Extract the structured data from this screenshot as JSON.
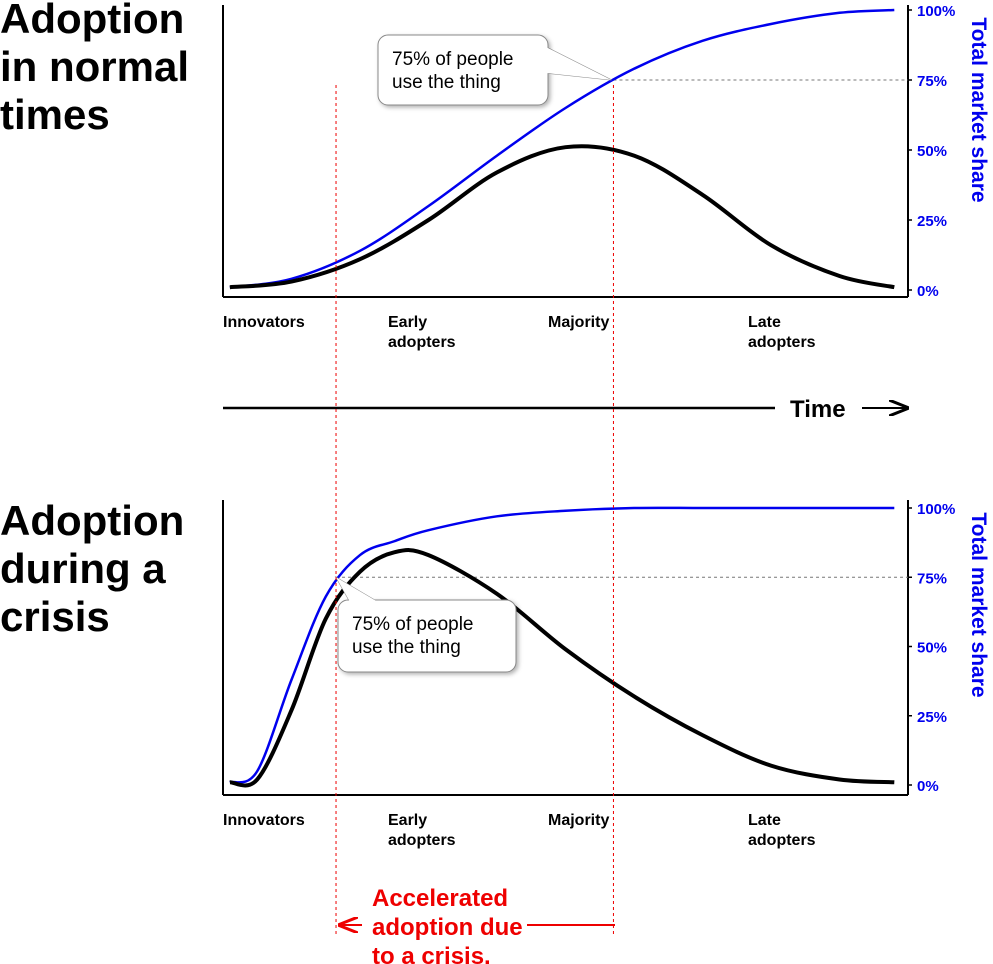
{
  "chart_data": [
    {
      "type": "line",
      "title": "Adoption in normal times",
      "y_label": "Total market share",
      "x": [
        1,
        10,
        20,
        30,
        40,
        50,
        60,
        70,
        80,
        90,
        98
      ],
      "xlim": [
        0,
        100
      ],
      "series": [
        {
          "color": "#0000ee",
          "values": [
            1,
            4,
            14,
            30,
            48,
            65,
            79,
            89,
            95,
            99,
            100
          ]
        },
        {
          "color": "#000000",
          "values": [
            1,
            3,
            11,
            25,
            42,
            51,
            48,
            34,
            16,
            5,
            1
          ]
        }
      ],
      "ylim": [
        0,
        100
      ],
      "yticks": [
        {
          "value": 0,
          "label": "0%"
        },
        {
          "value": 25,
          "label": "25%"
        },
        {
          "value": 50,
          "label": "50%"
        },
        {
          "value": 75,
          "label": "75%"
        },
        {
          "value": 100,
          "label": "100%"
        }
      ],
      "stages": [
        "Innovators",
        "Early adopters",
        "Majority",
        "Late adopters"
      ],
      "threshold": 75,
      "marker_x": 57,
      "callout": "75% of people use the thing"
    },
    {
      "type": "line",
      "title": "Adoption during a crisis",
      "y_label": "Total market share",
      "x": [
        1,
        5,
        10,
        15,
        20,
        25,
        30,
        40,
        50,
        60,
        70,
        80,
        90,
        98
      ],
      "xlim": [
        0,
        100
      ],
      "series": [
        {
          "color": "#0000ee",
          "values": [
            1,
            5,
            38,
            68,
            83,
            88,
            92,
            97,
            99,
            100,
            100,
            100,
            100,
            100
          ]
        },
        {
          "color": "#000000",
          "values": [
            1,
            2,
            27,
            60,
            77,
            84,
            83,
            69,
            49,
            32,
            18,
            7,
            2,
            1
          ]
        }
      ],
      "ylim": [
        0,
        100
      ],
      "yticks": [
        {
          "value": 0,
          "label": "0%"
        },
        {
          "value": 25,
          "label": "25%"
        },
        {
          "value": 50,
          "label": "50%"
        },
        {
          "value": 75,
          "label": "75%"
        },
        {
          "value": 100,
          "label": "100%"
        }
      ],
      "stages": [
        "Innovators",
        "Early adopters",
        "Majority",
        "Late adopters"
      ],
      "threshold": 75,
      "marker_x": 16.5,
      "callout": "75% of people use the thing"
    }
  ],
  "time_label": "Time",
  "annotation": "Accelerated adoption due to a crisis."
}
